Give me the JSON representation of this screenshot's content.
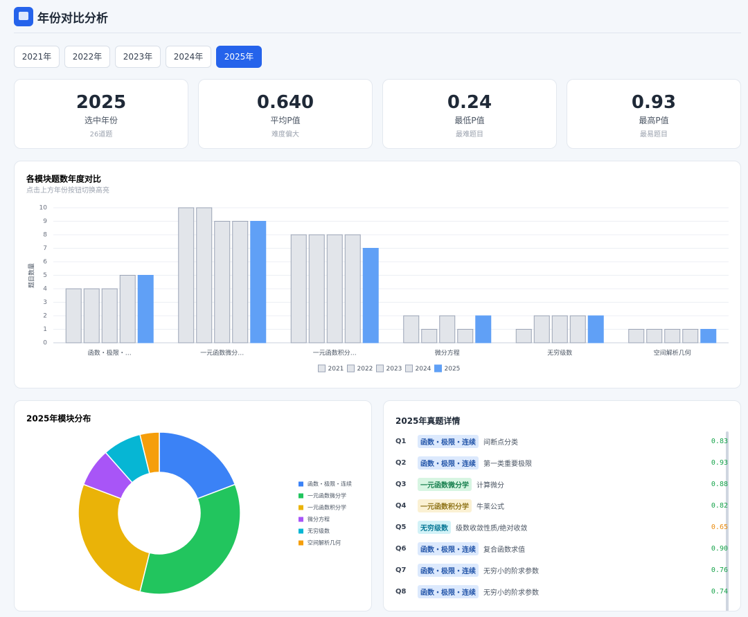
{
  "header": {
    "title": "年份对比分析"
  },
  "year_buttons": {
    "labels": [
      "2021年",
      "2022年",
      "2023年",
      "2024年",
      "2025年"
    ],
    "active": 4
  },
  "stats": [
    {
      "value": "2025",
      "label": "选中年份",
      "sub": "26道题"
    },
    {
      "value": "0.640",
      "label": "平均P值",
      "sub": "难度偏大"
    },
    {
      "value": "0.24",
      "label": "最低P值",
      "sub": "最难题目"
    },
    {
      "value": "0.93",
      "label": "最高P值",
      "sub": "最易题目"
    }
  ],
  "chart_data": [
    {
      "type": "bar",
      "title": "各模块题数年度对比",
      "subtitle": "点击上方年份按钮切换高亮",
      "y_label": "题目数量",
      "categories": [
        "函数・极限・…",
        "一元函数微分…",
        "一元函数积分…",
        "微分方程",
        "无穷级数",
        "空间解析几何"
      ],
      "series": [
        {
          "name": "2021",
          "color": "#e2e5ea",
          "values": [
            4,
            10,
            8,
            2,
            1,
            1
          ]
        },
        {
          "name": "2022",
          "color": "#e2e5ea",
          "values": [
            4,
            10,
            8,
            1,
            2,
            1
          ]
        },
        {
          "name": "2023",
          "color": "#e2e5ea",
          "values": [
            4,
            9,
            8,
            2,
            2,
            1
          ]
        },
        {
          "name": "2024",
          "color": "#e2e5ea",
          "values": [
            5,
            9,
            8,
            1,
            2,
            1
          ]
        },
        {
          "name": "2025",
          "color": "#60a0f6",
          "values": [
            5,
            9,
            7,
            2,
            2,
            1
          ]
        }
      ],
      "ylim": [
        0,
        10
      ],
      "yticks": [
        0,
        1,
        2,
        3,
        4,
        5,
        6,
        7,
        8,
        9,
        10
      ],
      "grid": true,
      "legend": "bottom"
    },
    {
      "type": "pie",
      "title": "2025年模块分布",
      "donut": true,
      "categories": [
        "函数・极限・连续",
        "一元函数微分学",
        "一元函数积分学",
        "微分方程",
        "无穷级数",
        "空间解析几何"
      ],
      "values": [
        5,
        9,
        7,
        2,
        2,
        1
      ],
      "colors": [
        "#3b82f6",
        "#22c55e",
        "#eab308",
        "#a855f7",
        "#06b6d4",
        "#f59e0b"
      ],
      "legend": "right"
    }
  ],
  "details": {
    "title": "2025年真题详情",
    "rows": [
      [
        "Q1",
        "函数・极限・连续",
        "间断点分类",
        "0.83"
      ],
      [
        "Q2",
        "函数・极限・连续",
        "第一类重要极限",
        "0.93"
      ],
      [
        "Q3",
        "一元函数微分学",
        "计算微分",
        "0.88"
      ],
      [
        "Q4",
        "一元函数积分学",
        "牛莱公式",
        "0.82"
      ],
      [
        "Q5",
        "无穷级数",
        "级数收敛性质/绝对收敛",
        "0.65"
      ],
      [
        "Q6",
        "函数・极限・连续",
        "复合函数求值",
        "0.90"
      ],
      [
        "Q7",
        "函数・极限・连续",
        "无穷小的阶求参数",
        "0.76"
      ],
      [
        "Q8",
        "函数・极限・连续",
        "无穷小的阶求参数",
        "0.74"
      ]
    ]
  }
}
